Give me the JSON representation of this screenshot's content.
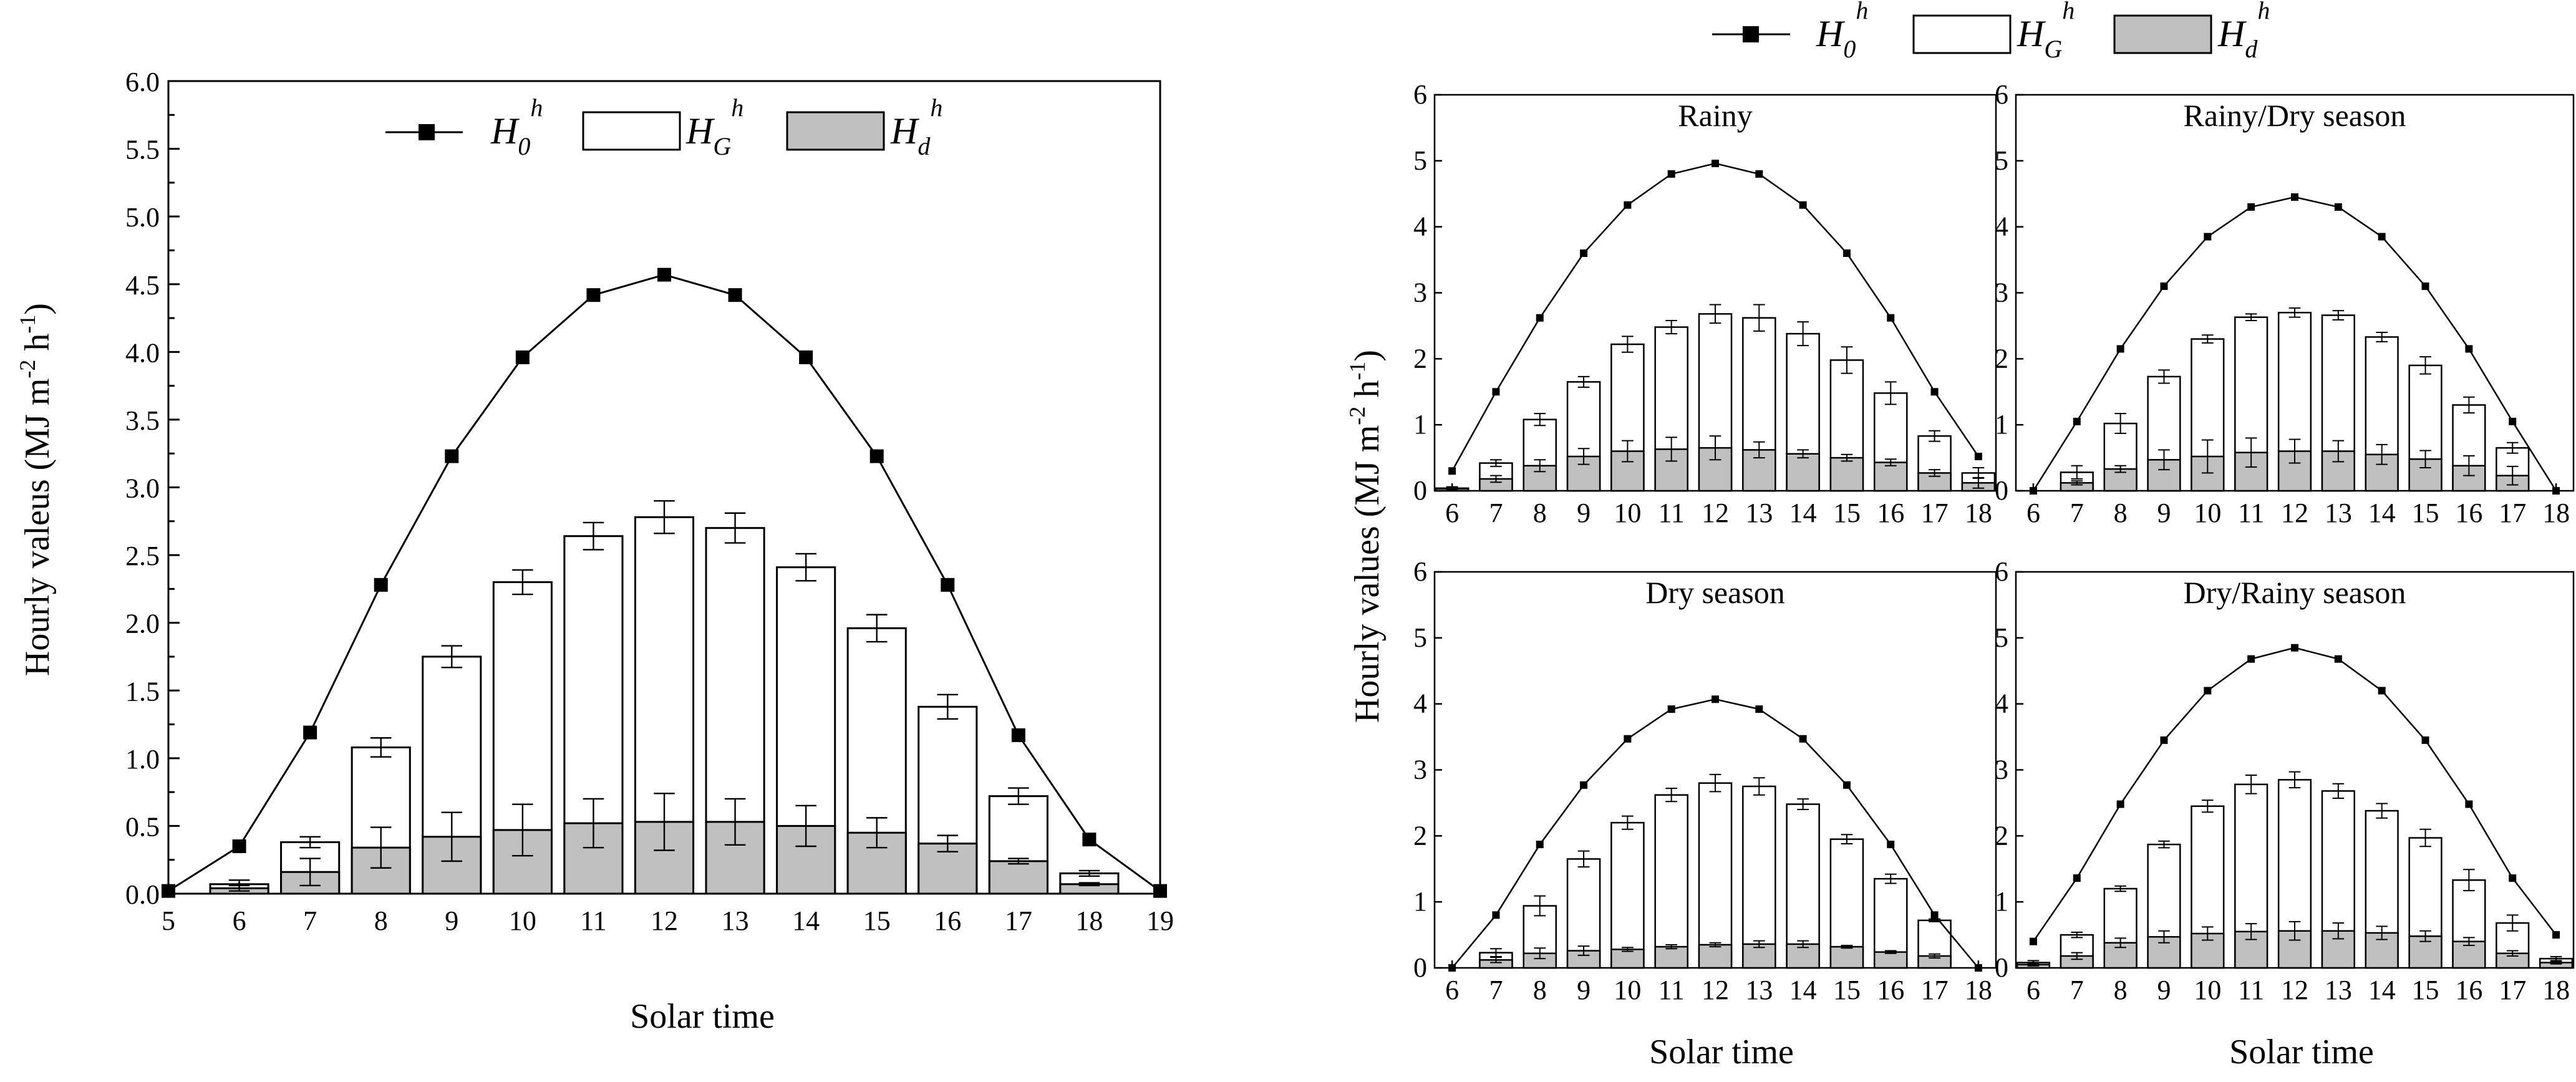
{
  "colors": {
    "ghs_fill": "#ffffff",
    "ghd_fill": "#c0c0c0",
    "h0_line": "#000000",
    "axis": "#000000"
  },
  "legend": {
    "h0_base": "H",
    "h0_sub": "0",
    "hg_base": "H",
    "hg_sub": "G",
    "hd_base": "H",
    "hd_sub": "d",
    "sup": "h"
  },
  "chart_data": [
    {
      "type": "bar+line",
      "title": "",
      "xlabel": "Solar time",
      "ylabel": "Hourly valeus (MJ m⁻² h⁻¹)",
      "ylabel_text": "Hourly valeus (MJ m",
      "ylabel_exp1": "-2",
      "ylabel_mid": " h",
      "ylabel_exp2": "-1",
      "ylabel_end": ")",
      "xlim": [
        5,
        19
      ],
      "ylim": [
        0,
        6
      ],
      "x_ticks": [
        "5",
        "6",
        "7",
        "8",
        "9",
        "10",
        "11",
        "12",
        "13",
        "14",
        "15",
        "16",
        "17",
        "18",
        "19"
      ],
      "y_ticks": [
        "0.0",
        "0.5",
        "1.0",
        "1.5",
        "2.0",
        "2.5",
        "3.0",
        "3.5",
        "4.0",
        "4.5",
        "5.0",
        "5.5",
        "6.0"
      ],
      "y_step": 0.5,
      "series": [
        {
          "name": "H0h",
          "kind": "line",
          "x": [
            5,
            6,
            7,
            8,
            9,
            10,
            11,
            12,
            13,
            14,
            15,
            16,
            17,
            18,
            19
          ],
          "values": [
            0.02,
            0.35,
            1.19,
            2.28,
            3.23,
            3.96,
            4.42,
            4.57,
            4.42,
            3.96,
            3.23,
            2.28,
            1.17,
            0.4,
            0.02
          ]
        },
        {
          "name": "HGh",
          "kind": "bar",
          "x": [
            6,
            7,
            8,
            9,
            10,
            11,
            12,
            13,
            14,
            15,
            16,
            17,
            18
          ],
          "values": [
            0.07,
            0.38,
            1.08,
            1.75,
            2.3,
            2.64,
            2.78,
            2.7,
            2.41,
            1.96,
            1.38,
            0.72,
            0.15
          ],
          "errors": [
            0.03,
            0.04,
            0.07,
            0.08,
            0.09,
            0.1,
            0.12,
            0.11,
            0.1,
            0.1,
            0.09,
            0.06,
            0.02
          ]
        },
        {
          "name": "Hdh",
          "kind": "bar",
          "x": [
            6,
            7,
            8,
            9,
            10,
            11,
            12,
            13,
            14,
            15,
            16,
            17,
            18
          ],
          "values": [
            0.04,
            0.16,
            0.34,
            0.42,
            0.47,
            0.52,
            0.53,
            0.53,
            0.5,
            0.45,
            0.37,
            0.24,
            0.07
          ],
          "errors": [
            0.02,
            0.1,
            0.15,
            0.18,
            0.19,
            0.18,
            0.21,
            0.17,
            0.15,
            0.11,
            0.06,
            0.02,
            0.01
          ]
        }
      ]
    },
    {
      "type": "bar+line",
      "title": "Rainy",
      "xlim": [
        5.6,
        18.4
      ],
      "ylim": [
        0,
        6
      ],
      "x_ticks": [
        "6",
        "7",
        "8",
        "9",
        "10",
        "11",
        "12",
        "13",
        "14",
        "15",
        "16",
        "17",
        "18"
      ],
      "y_ticks": [
        "0",
        "1",
        "2",
        "3",
        "4",
        "5",
        "6"
      ],
      "y_step": 1,
      "series": [
        {
          "name": "H0h",
          "kind": "line",
          "x": [
            6,
            7,
            8,
            9,
            10,
            11,
            12,
            13,
            14,
            15,
            16,
            17,
            18
          ],
          "values": [
            0.3,
            1.5,
            2.62,
            3.6,
            4.33,
            4.8,
            4.96,
            4.8,
            4.33,
            3.6,
            2.62,
            1.5,
            0.52
          ]
        },
        {
          "name": "HGh",
          "kind": "bar",
          "x": [
            6,
            7,
            8,
            9,
            10,
            11,
            12,
            13,
            14,
            15,
            16,
            17,
            18
          ],
          "values": [
            0.04,
            0.42,
            1.08,
            1.65,
            2.22,
            2.48,
            2.68,
            2.62,
            2.38,
            1.98,
            1.48,
            0.83,
            0.27
          ],
          "errors": [
            0.02,
            0.05,
            0.09,
            0.08,
            0.12,
            0.1,
            0.14,
            0.2,
            0.18,
            0.2,
            0.17,
            0.08,
            0.08
          ]
        },
        {
          "name": "Hdh",
          "kind": "bar",
          "x": [
            6,
            7,
            8,
            9,
            10,
            11,
            12,
            13,
            14,
            15,
            16,
            17,
            18
          ],
          "values": [
            0.03,
            0.18,
            0.38,
            0.52,
            0.6,
            0.63,
            0.65,
            0.62,
            0.56,
            0.5,
            0.43,
            0.27,
            0.12
          ],
          "errors": [
            0.01,
            0.05,
            0.09,
            0.12,
            0.16,
            0.18,
            0.18,
            0.12,
            0.06,
            0.05,
            0.05,
            0.05,
            0.08
          ]
        }
      ]
    },
    {
      "type": "bar+line",
      "title": "Rainy/Dry season",
      "xlim": [
        5.6,
        18.4
      ],
      "ylim": [
        0,
        6
      ],
      "x_ticks": [
        "6",
        "7",
        "8",
        "9",
        "10",
        "11",
        "12",
        "13",
        "14",
        "15",
        "16",
        "17",
        "18"
      ],
      "y_ticks": [
        "0",
        "1",
        "2",
        "3",
        "4",
        "5",
        "6"
      ],
      "y_step": 1,
      "series": [
        {
          "name": "H0h",
          "kind": "line",
          "x": [
            6,
            7,
            8,
            9,
            10,
            11,
            12,
            13,
            14,
            15,
            16,
            17,
            18
          ],
          "values": [
            0.0,
            1.05,
            2.15,
            3.1,
            3.85,
            4.3,
            4.45,
            4.3,
            3.85,
            3.1,
            2.15,
            1.05,
            0.0
          ]
        },
        {
          "name": "HGh",
          "kind": "bar",
          "x": [
            7,
            8,
            9,
            10,
            11,
            12,
            13,
            14,
            15,
            16,
            17
          ],
          "values": [
            0.28,
            1.02,
            1.73,
            2.3,
            2.63,
            2.7,
            2.66,
            2.33,
            1.9,
            1.3,
            0.65
          ],
          "errors": [
            0.1,
            0.15,
            0.1,
            0.06,
            0.05,
            0.07,
            0.07,
            0.07,
            0.13,
            0.12,
            0.08
          ]
        },
        {
          "name": "Hdh",
          "kind": "bar",
          "x": [
            7,
            8,
            9,
            10,
            11,
            12,
            13,
            14,
            15,
            16,
            17
          ],
          "values": [
            0.12,
            0.33,
            0.47,
            0.52,
            0.58,
            0.6,
            0.6,
            0.55,
            0.48,
            0.38,
            0.23
          ],
          "errors": [
            0.03,
            0.05,
            0.15,
            0.25,
            0.22,
            0.18,
            0.16,
            0.15,
            0.13,
            0.15,
            0.14
          ]
        }
      ]
    },
    {
      "type": "bar+line",
      "title": "Dry season",
      "xlim": [
        5.6,
        18.4
      ],
      "ylim": [
        0,
        6
      ],
      "x_ticks": [
        "6",
        "7",
        "8",
        "9",
        "10",
        "11",
        "12",
        "13",
        "14",
        "15",
        "16",
        "17",
        "18"
      ],
      "y_ticks": [
        "0",
        "1",
        "2",
        "3",
        "4",
        "5",
        "6"
      ],
      "y_step": 1,
      "series": [
        {
          "name": "H0h",
          "kind": "line",
          "x": [
            6,
            7,
            8,
            9,
            10,
            11,
            12,
            13,
            14,
            15,
            16,
            17,
            18
          ],
          "values": [
            0.0,
            0.8,
            1.87,
            2.77,
            3.47,
            3.92,
            4.07,
            3.92,
            3.47,
            2.77,
            1.87,
            0.8,
            0.0
          ]
        },
        {
          "name": "HGh",
          "kind": "bar",
          "x": [
            7,
            8,
            9,
            10,
            11,
            12,
            13,
            14,
            15,
            16,
            17
          ],
          "values": [
            0.23,
            0.94,
            1.65,
            2.2,
            2.62,
            2.8,
            2.75,
            2.48,
            1.95,
            1.35,
            0.72
          ],
          "errors": [
            0.06,
            0.15,
            0.12,
            0.1,
            0.1,
            0.13,
            0.13,
            0.08,
            0.07,
            0.07,
            0.02
          ]
        },
        {
          "name": "Hdh",
          "kind": "bar",
          "x": [
            7,
            8,
            9,
            10,
            11,
            12,
            13,
            14,
            15,
            16,
            17
          ],
          "values": [
            0.12,
            0.22,
            0.26,
            0.28,
            0.32,
            0.35,
            0.36,
            0.36,
            0.32,
            0.24,
            0.18
          ],
          "errors": [
            0.04,
            0.08,
            0.07,
            0.03,
            0.03,
            0.03,
            0.05,
            0.05,
            0.02,
            0.02,
            0.03
          ]
        }
      ]
    },
    {
      "type": "bar+line",
      "title": "Dry/Rainy season",
      "xlim": [
        5.6,
        18.4
      ],
      "ylim": [
        0,
        6
      ],
      "x_ticks": [
        "6",
        "7",
        "8",
        "9",
        "10",
        "11",
        "12",
        "13",
        "14",
        "15",
        "16",
        "17",
        "18"
      ],
      "y_ticks": [
        "0",
        "1",
        "2",
        "3",
        "4",
        "5",
        "6"
      ],
      "y_step": 1,
      "series": [
        {
          "name": "H0h",
          "kind": "line",
          "x": [
            6,
            7,
            8,
            9,
            10,
            11,
            12,
            13,
            14,
            15,
            16,
            17,
            18
          ],
          "values": [
            0.4,
            1.36,
            2.48,
            3.45,
            4.2,
            4.68,
            4.85,
            4.68,
            4.2,
            3.45,
            2.48,
            1.36,
            0.5
          ]
        },
        {
          "name": "HGh",
          "kind": "bar",
          "x": [
            6,
            7,
            8,
            9,
            10,
            11,
            12,
            13,
            14,
            15,
            16,
            17,
            18
          ],
          "values": [
            0.08,
            0.5,
            1.2,
            1.87,
            2.45,
            2.78,
            2.85,
            2.68,
            2.38,
            1.97,
            1.33,
            0.68,
            0.14
          ],
          "errors": [
            0.03,
            0.04,
            0.04,
            0.05,
            0.09,
            0.14,
            0.12,
            0.11,
            0.11,
            0.13,
            0.16,
            0.12,
            0.03
          ]
        },
        {
          "name": "Hdh",
          "kind": "bar",
          "x": [
            6,
            7,
            8,
            9,
            10,
            11,
            12,
            13,
            14,
            15,
            16,
            17,
            18
          ],
          "values": [
            0.05,
            0.18,
            0.38,
            0.47,
            0.52,
            0.55,
            0.56,
            0.56,
            0.53,
            0.48,
            0.4,
            0.22,
            0.08
          ],
          "errors": [
            0.02,
            0.05,
            0.07,
            0.09,
            0.1,
            0.12,
            0.14,
            0.12,
            0.1,
            0.08,
            0.06,
            0.04,
            0.02
          ]
        }
      ]
    }
  ],
  "right_panel": {
    "xlabel": "Solar time",
    "ylabel_text": "Hourly values (MJ m",
    "ylabel_exp1": "-2",
    "ylabel_mid": " h",
    "ylabel_exp2": "-1",
    "ylabel_end": ")"
  }
}
